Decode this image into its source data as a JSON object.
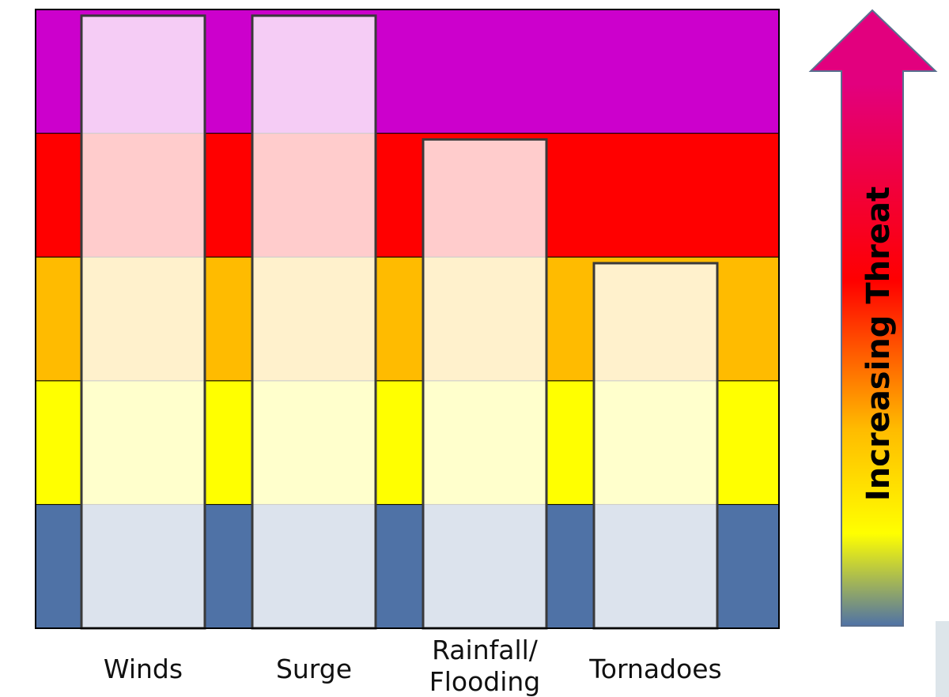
{
  "chart_data": {
    "type": "bar",
    "categories": [
      "Winds",
      "Surge",
      "Rainfall/ Flooding",
      "Tornadoes"
    ],
    "category_lines": [
      [
        "Winds"
      ],
      [
        "Surge"
      ],
      [
        "Rainfall/",
        "Flooding"
      ],
      [
        "Tornadoes"
      ]
    ],
    "values": [
      4.95,
      4.95,
      3.95,
      2.95
    ],
    "ylim": [
      0,
      5
    ],
    "levels": [
      {
        "from": 0,
        "to": 1,
        "color": "#4f72a6"
      },
      {
        "from": 1,
        "to": 2,
        "color": "#ffff00"
      },
      {
        "from": 2,
        "to": 3,
        "color": "#ffbb00"
      },
      {
        "from": 3,
        "to": 4,
        "color": "#ff0000"
      },
      {
        "from": 4,
        "to": 5,
        "color": "#cc00cc"
      }
    ],
    "bar_fill": "#ffffff",
    "bar_opacity": 0.8,
    "grid": false,
    "legend": "none",
    "arrow": {
      "label": "Increasing Threat",
      "gradient": [
        "#4f72a6",
        "#ffff00",
        "#ffbb00",
        "#ff0000",
        "#e2007e"
      ]
    }
  }
}
